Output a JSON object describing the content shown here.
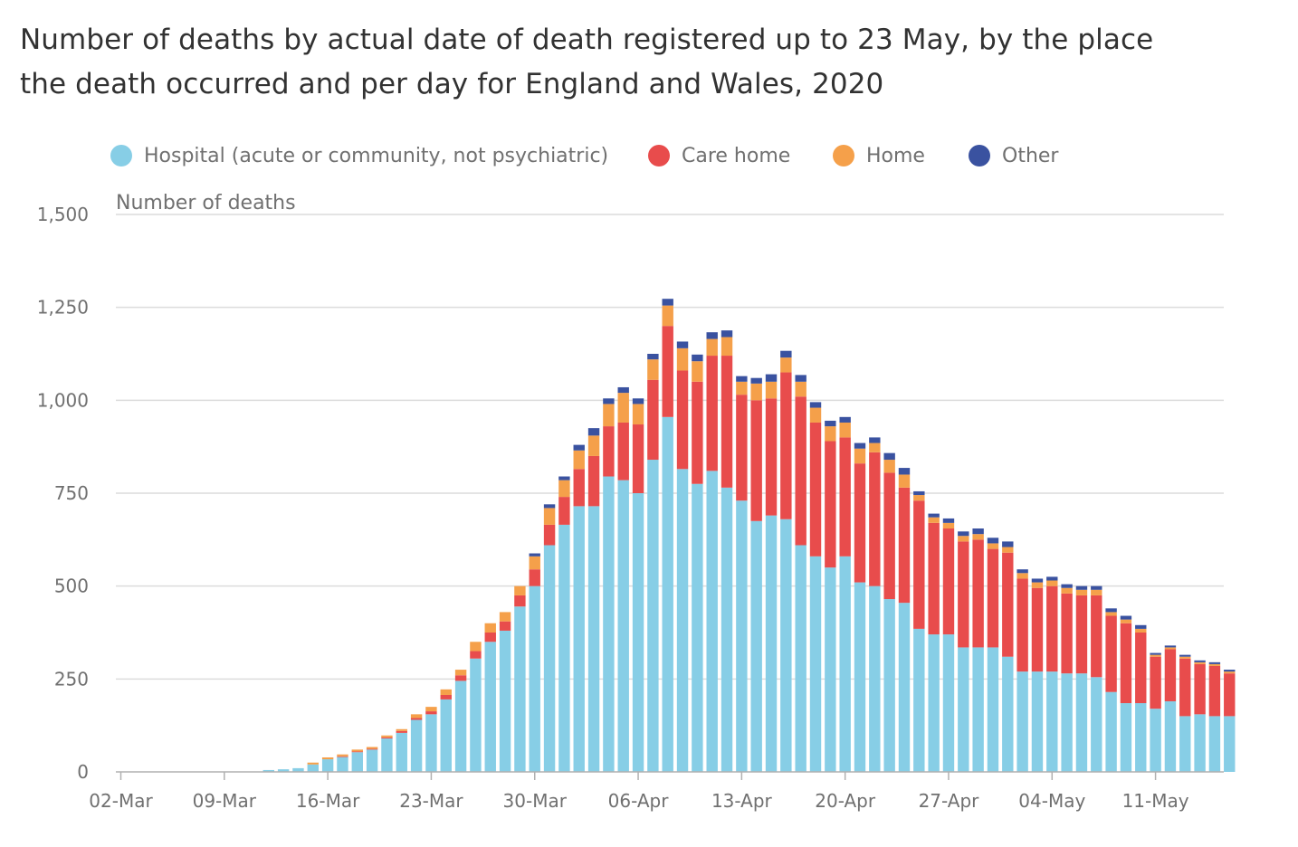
{
  "title_lines": [
    "Number of deaths by actual date of death registered up to 23 May, by the place",
    "the death occurred and per day for England and Wales, 2020"
  ],
  "legend": [
    {
      "label": "Hospital (acute or community, not psychiatric)",
      "color": "#87CEE6"
    },
    {
      "label": "Care home",
      "color": "#E84C4C"
    },
    {
      "label": "Home",
      "color": "#F5A04A"
    },
    {
      "label": "Other",
      "color": "#3A52A0"
    }
  ],
  "chart_data": {
    "type": "bar",
    "stacked": true,
    "title": "Number of deaths by actual date of death registered up to 23 May, by the place the death occurred and per day for England and Wales, 2020",
    "ylabel": "Number of deaths",
    "xlabel": "",
    "ylim": [
      0,
      1500
    ],
    "yticks": [
      0,
      250,
      500,
      750,
      1000,
      1250,
      1500
    ],
    "ytick_labels": [
      "0",
      "250",
      "500",
      "750",
      "1,000",
      "1,250",
      "1,500"
    ],
    "xtick_labels": [
      "02-Mar",
      "09-Mar",
      "16-Mar",
      "23-Mar",
      "30-Mar",
      "06-Apr",
      "13-Apr",
      "20-Apr",
      "27-Apr",
      "04-May",
      "11-May"
    ],
    "xtick_every": 7,
    "grid": true,
    "categories": [
      "02-Mar",
      "03-Mar",
      "04-Mar",
      "05-Mar",
      "06-Mar",
      "07-Mar",
      "08-Mar",
      "09-Mar",
      "10-Mar",
      "11-Mar",
      "12-Mar",
      "13-Mar",
      "14-Mar",
      "15-Mar",
      "16-Mar",
      "17-Mar",
      "18-Mar",
      "19-Mar",
      "20-Mar",
      "21-Mar",
      "22-Mar",
      "23-Mar",
      "24-Mar",
      "25-Mar",
      "26-Mar",
      "27-Mar",
      "28-Mar",
      "29-Mar",
      "30-Mar",
      "31-Mar",
      "01-Apr",
      "02-Apr",
      "03-Apr",
      "04-Apr",
      "05-Apr",
      "06-Apr",
      "07-Apr",
      "08-Apr",
      "09-Apr",
      "10-Apr",
      "11-Apr",
      "12-Apr",
      "13-Apr",
      "14-Apr",
      "15-Apr",
      "16-Apr",
      "17-Apr",
      "18-Apr",
      "19-Apr",
      "20-Apr",
      "21-Apr",
      "22-Apr",
      "23-Apr",
      "24-Apr",
      "25-Apr",
      "26-Apr",
      "27-Apr",
      "28-Apr",
      "29-Apr",
      "30-Apr",
      "01-May",
      "02-May",
      "03-May",
      "04-May",
      "05-May",
      "06-May",
      "07-May",
      "08-May",
      "09-May",
      "10-May",
      "11-May",
      "12-May",
      "13-May",
      "14-May",
      "15-May",
      "16-May"
    ],
    "series": [
      {
        "name": "Hospital (acute or community, not psychiatric)",
        "color": "#87CEE6",
        "values": [
          0,
          0,
          0,
          0,
          0,
          0,
          0,
          0,
          0,
          0,
          5,
          7,
          10,
          20,
          34,
          40,
          53,
          60,
          90,
          105,
          140,
          155,
          195,
          245,
          305,
          350,
          380,
          445,
          500,
          610,
          665,
          715,
          715,
          795,
          785,
          750,
          840,
          955,
          815,
          775,
          810,
          765,
          730,
          675,
          690,
          680,
          610,
          580,
          550,
          580,
          510,
          500,
          465,
          455,
          385,
          370,
          370,
          335,
          335,
          335,
          310,
          270,
          270,
          270,
          265,
          265,
          255,
          215,
          185,
          185,
          170,
          190,
          150,
          155,
          150,
          150
        ]
      },
      {
        "name": "Care home",
        "color": "#E84C4C",
        "values": [
          0,
          0,
          0,
          0,
          0,
          0,
          0,
          0,
          0,
          0,
          0,
          0,
          0,
          0,
          0,
          2,
          2,
          2,
          3,
          5,
          5,
          8,
          12,
          15,
          20,
          25,
          25,
          30,
          45,
          55,
          75,
          100,
          135,
          135,
          155,
          185,
          215,
          245,
          265,
          275,
          310,
          355,
          285,
          325,
          315,
          395,
          400,
          360,
          340,
          320,
          320,
          360,
          340,
          310,
          345,
          300,
          285,
          285,
          290,
          265,
          280,
          250,
          225,
          230,
          215,
          210,
          220,
          205,
          215,
          190,
          140,
          140,
          155,
          135,
          135,
          115
        ]
      },
      {
        "name": "Home",
        "color": "#F5A04A",
        "values": [
          0,
          0,
          0,
          0,
          0,
          0,
          0,
          0,
          0,
          0,
          0,
          0,
          0,
          5,
          5,
          5,
          5,
          5,
          5,
          5,
          10,
          12,
          15,
          15,
          25,
          25,
          25,
          25,
          35,
          45,
          45,
          50,
          55,
          60,
          80,
          55,
          55,
          55,
          60,
          55,
          45,
          50,
          35,
          45,
          45,
          40,
          40,
          40,
          40,
          40,
          40,
          25,
          35,
          35,
          15,
          15,
          15,
          15,
          15,
          15,
          15,
          15,
          15,
          15,
          15,
          15,
          15,
          10,
          10,
          10,
          5,
          5,
          5,
          5,
          5,
          5
        ]
      },
      {
        "name": "Other",
        "color": "#3A52A0",
        "values": [
          0,
          0,
          0,
          0,
          0,
          0,
          0,
          0,
          0,
          0,
          0,
          0,
          0,
          0,
          0,
          0,
          0,
          0,
          0,
          0,
          0,
          0,
          0,
          0,
          0,
          0,
          0,
          0,
          8,
          10,
          10,
          15,
          20,
          15,
          15,
          15,
          15,
          18,
          18,
          18,
          18,
          18,
          15,
          15,
          20,
          18,
          18,
          15,
          15,
          15,
          15,
          15,
          18,
          18,
          10,
          10,
          12,
          12,
          15,
          15,
          15,
          10,
          10,
          10,
          10,
          10,
          10,
          10,
          10,
          10,
          5,
          5,
          5,
          5,
          5,
          5
        ]
      }
    ]
  }
}
